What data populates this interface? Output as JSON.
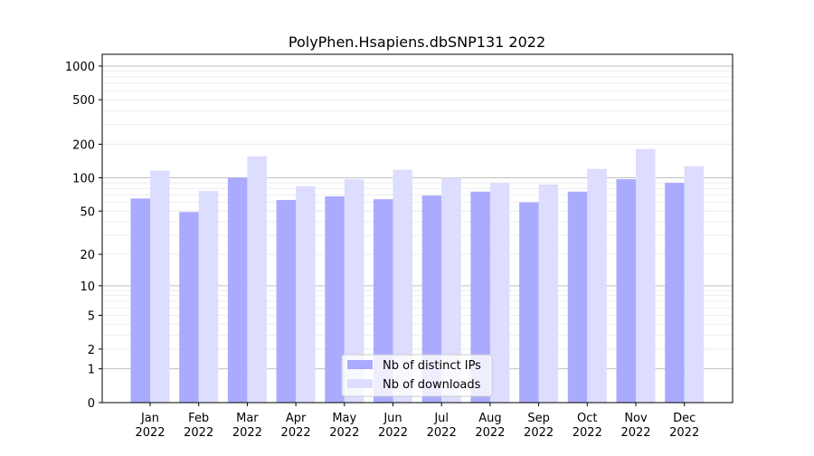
{
  "chart_data": {
    "type": "bar",
    "title": "PolyPhen.Hsapiens.dbSNP131 2022",
    "xlabel": "",
    "ylabel": "",
    "yscale": "log(1+x)",
    "ylim": [
      0,
      1200
    ],
    "yticks": [
      0,
      1,
      2,
      5,
      10,
      20,
      50,
      100,
      200,
      500,
      1000
    ],
    "categories": [
      "Jan\n2022",
      "Feb\n2022",
      "Mar\n2022",
      "Apr\n2022",
      "May\n2022",
      "Jun\n2022",
      "Jul\n2022",
      "Aug\n2022",
      "Sep\n2022",
      "Oct\n2022",
      "Nov\n2022",
      "Dec\n2022"
    ],
    "series": [
      {
        "name": "Nb of distinct IPs",
        "color": "#aaaaff",
        "values": [
          65,
          49,
          100,
          63,
          68,
          64,
          69,
          75,
          60,
          75,
          97,
          90
        ]
      },
      {
        "name": "Nb of downloads",
        "color": "#ddddff",
        "values": [
          116,
          76,
          156,
          84,
          97,
          118,
          100,
          90,
          87,
          120,
          181,
          127
        ]
      }
    ],
    "legend": "bottom-center",
    "grid": true
  }
}
